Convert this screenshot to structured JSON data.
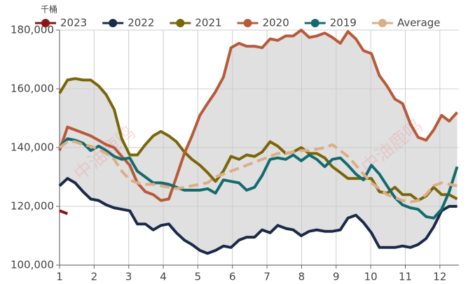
{
  "chart_data": {
    "type": "line",
    "y_unit": "千桶",
    "watermark": "中油鹿鸣",
    "x": [
      1,
      1.23,
      1.45,
      1.68,
      1.9,
      2.13,
      2.35,
      2.58,
      2.8,
      3.03,
      3.25,
      3.48,
      3.71,
      3.93,
      4.16,
      4.38,
      4.61,
      4.83,
      5.06,
      5.28,
      5.51,
      5.74,
      5.96,
      6.19,
      6.41,
      6.64,
      6.86,
      7.09,
      7.31,
      7.54,
      7.76,
      7.99,
      8.22,
      8.44,
      8.67,
      8.89,
      9.12,
      9.34,
      9.57,
      9.79,
      10.02,
      10.25,
      10.47,
      10.7,
      10.92,
      11.15,
      11.37,
      11.6,
      11.82,
      12.05,
      12.27,
      12.5
    ],
    "xlim": [
      1,
      12.55
    ],
    "xticks": [
      1,
      2,
      3,
      4,
      5,
      6,
      7,
      8,
      9,
      10,
      11,
      12
    ],
    "ylim": [
      100000,
      180000
    ],
    "yticks": [
      {
        "value": 100000,
        "label": "100,000"
      },
      {
        "value": 120000,
        "label": "120,000"
      },
      {
        "value": 140000,
        "label": "140,000"
      },
      {
        "value": 160000,
        "label": "160,000"
      },
      {
        "value": 180000,
        "label": "180,000"
      }
    ],
    "grid": true,
    "legend": "top",
    "band_color": "#e0e0e0",
    "series": [
      {
        "name": "2023",
        "color": "#8b1414",
        "values": [
          118500,
          117500,
          null,
          null,
          null,
          null,
          null,
          null,
          null,
          null,
          null,
          null,
          null,
          null,
          null,
          null,
          null,
          null,
          null,
          null,
          null,
          null,
          null,
          null,
          null,
          null,
          null,
          null,
          null,
          null,
          null,
          null,
          null,
          null,
          null,
          null,
          null,
          null,
          null,
          null,
          null,
          null,
          null,
          null,
          null,
          null,
          null,
          null,
          null,
          null,
          null,
          null
        ]
      },
      {
        "name": "2022",
        "color": "#1b2a4a",
        "values": [
          127000,
          129500,
          128000,
          125000,
          122500,
          122000,
          120500,
          119500,
          119000,
          118500,
          114000,
          114000,
          112000,
          113500,
          114000,
          111000,
          108500,
          107000,
          105000,
          104000,
          105000,
          106500,
          106000,
          108500,
          109500,
          109500,
          112000,
          111000,
          113500,
          112500,
          112000,
          110000,
          111500,
          112000,
          111500,
          111500,
          112000,
          116000,
          117000,
          114500,
          111000,
          106000,
          106000,
          106000,
          106500,
          106000,
          107000,
          109000,
          113000,
          118500,
          120000,
          120000
        ]
      },
      {
        "name": "2021",
        "color": "#7a6608",
        "values": [
          158500,
          163000,
          163500,
          163000,
          163000,
          161000,
          158000,
          153000,
          143000,
          137500,
          137500,
          141000,
          144000,
          145500,
          144000,
          142000,
          138500,
          136000,
          134000,
          131500,
          128500,
          132000,
          137000,
          136000,
          137500,
          137000,
          138500,
          142000,
          140500,
          138000,
          138500,
          140000,
          138000,
          138000,
          136500,
          133500,
          131500,
          129500,
          129500,
          129500,
          129500,
          125000,
          124500,
          126500,
          124000,
          124000,
          122000,
          123500,
          126500,
          124000,
          124000,
          122500
        ]
      },
      {
        "name": "2020",
        "color": "#b85a3a",
        "values": [
          139000,
          147000,
          146000,
          145000,
          144000,
          142500,
          141000,
          140000,
          137000,
          134000,
          128000,
          125000,
          124000,
          122000,
          122500,
          130000,
          138000,
          144000,
          151000,
          155000,
          159000,
          164000,
          174000,
          175500,
          174500,
          174500,
          174000,
          177000,
          176500,
          178000,
          178000,
          180000,
          177500,
          178000,
          179000,
          177500,
          175500,
          179500,
          177000,
          173000,
          172000,
          164500,
          161000,
          156500,
          155000,
          148000,
          143500,
          142500,
          146000,
          151000,
          149000,
          152000
        ]
      },
      {
        "name": "2019",
        "color": "#136b6e",
        "values": [
          140000,
          143000,
          142500,
          141500,
          139000,
          140500,
          139000,
          137000,
          136000,
          136500,
          132000,
          130000,
          128000,
          128000,
          127500,
          126500,
          125500,
          125500,
          125500,
          126000,
          124500,
          129000,
          128500,
          128000,
          125500,
          126500,
          130500,
          136000,
          136500,
          136000,
          137500,
          135500,
          137500,
          136000,
          133500,
          136000,
          136500,
          134000,
          131000,
          129000,
          134000,
          131000,
          127000,
          123000,
          120500,
          119500,
          119000,
          116500,
          116000,
          119000,
          125000,
          133500
        ]
      },
      {
        "name": "Average",
        "color": "#dcae85",
        "dashed": true,
        "values": [
          140000,
          142000,
          142000,
          141000,
          140500,
          139500,
          138000,
          136000,
          132000,
          129000,
          128000,
          127500,
          127500,
          127000,
          126500,
          126000,
          126500,
          127000,
          127500,
          128000,
          130000,
          131000,
          132000,
          133000,
          134000,
          135000,
          136000,
          137000,
          138000,
          138000,
          138500,
          139000,
          139000,
          139500,
          140000,
          141000,
          139000,
          137000,
          134000,
          131000,
          128000,
          126000,
          124000,
          123000,
          122000,
          121500,
          122000,
          124000,
          127000,
          128000,
          127500,
          127000
        ]
      }
    ]
  }
}
